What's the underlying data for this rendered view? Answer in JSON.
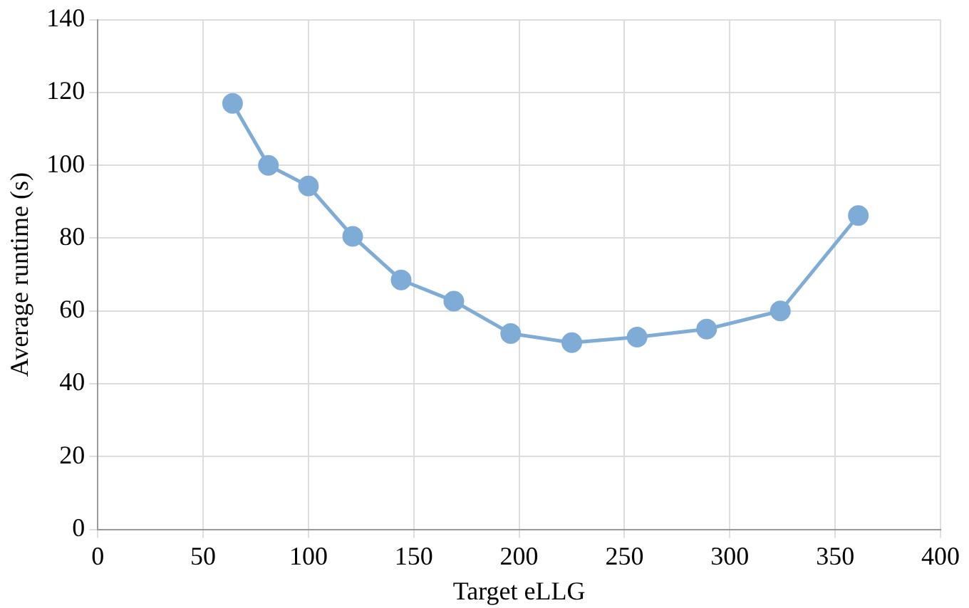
{
  "chart_data": {
    "type": "line",
    "xlabel": "Target eLLG",
    "ylabel": "Average runtime (s)",
    "x": [
      64,
      81,
      100,
      121,
      144,
      169,
      196,
      225,
      256,
      289,
      324,
      361
    ],
    "series": [
      {
        "color": "#7eacd6",
        "values": [
          117,
          100,
          94.3,
          80.5,
          68.5,
          62.7,
          53.8,
          51.3,
          52.8,
          55,
          60,
          86.2
        ]
      }
    ],
    "xlim": [
      0,
      400
    ],
    "xticks": [
      0,
      50,
      100,
      150,
      200,
      250,
      300,
      350,
      400
    ],
    "ylim": [
      0,
      140
    ],
    "yticks": [
      0,
      20,
      40,
      60,
      80,
      100,
      120,
      140
    ],
    "grid": true,
    "legend": false,
    "marker": "circle",
    "line_style": "solid"
  }
}
